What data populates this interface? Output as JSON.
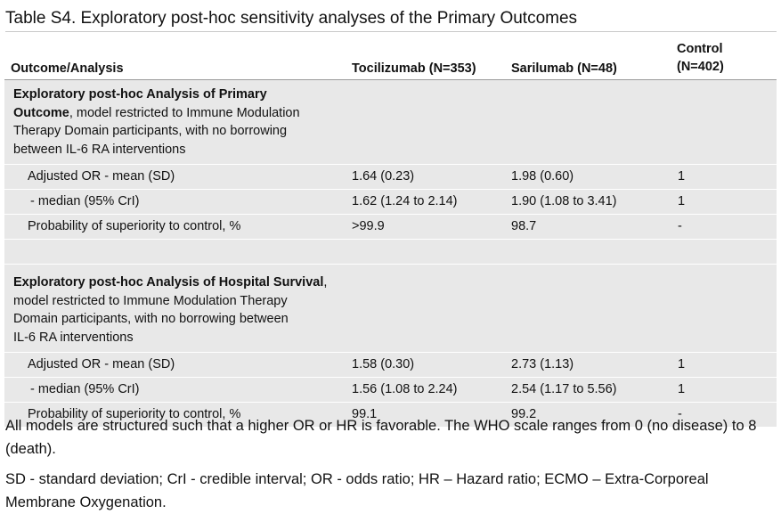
{
  "caption": "Table S4. Exploratory post-hoc sensitivity analyses of the Primary Outcomes",
  "header": {
    "outcome": "Outcome/Analysis",
    "tocilizumab": "Tocilizumab (N=353)",
    "sarilumab": "Sarilumab (N=48)",
    "control_line1": "Control",
    "control_line2": "(N=402)"
  },
  "section1": {
    "title_bold_a": "Exploratory post-hoc Analysis of Primary",
    "title_bold_b": "Outcome",
    "title_rest_a": ", model restricted to Immune Modulation",
    "title_rest_b": "Therapy Domain participants, with no borrowing",
    "title_rest_c": "between IL-6 RA interventions",
    "rows": [
      {
        "label": "Adjusted OR - mean (SD)",
        "toci": "1.64 (0.23)",
        "sari": "1.98 (0.60)",
        "control": "1"
      },
      {
        "label": "- median (95% CrI)",
        "toci": "1.62 (1.24 to 2.14)",
        "sari": "1.90 (1.08 to 3.41)",
        "control": "1"
      },
      {
        "label": "Probability of superiority to control, %",
        "toci": ">99.9",
        "sari": "98.7",
        "control": "-"
      }
    ]
  },
  "section2": {
    "title_bold": "Exploratory post-hoc Analysis of Hospital Survival",
    "title_rest_a": ",",
    "title_rest_b": "model restricted to Immune Modulation Therapy",
    "title_rest_c": "Domain participants, with no borrowing between",
    "title_rest_d": "IL-6 RA interventions",
    "rows": [
      {
        "label": "Adjusted OR - mean (SD)",
        "toci": "1.58 (0.30)",
        "sari": "2.73 (1.13)",
        "control": "1"
      },
      {
        "label": "- median (95% CrI)",
        "toci": "1.56 (1.08 to 2.24)",
        "sari": "2.54 (1.17 to 5.56)",
        "control": "1"
      },
      {
        "label": "Probability of superiority to control, %",
        "toci": "99.1",
        "sari": "99.2",
        "control": "-"
      }
    ]
  },
  "notes": [
    "All models are structured such that a higher OR or HR is favorable. The WHO scale ranges from 0 (no disease) to 8 (death).",
    "SD - standard deviation; CrI - credible interval; OR - odds ratio; HR – Hazard ratio; ECMO – Extra-Corporeal Membrane Oxygenation."
  ]
}
